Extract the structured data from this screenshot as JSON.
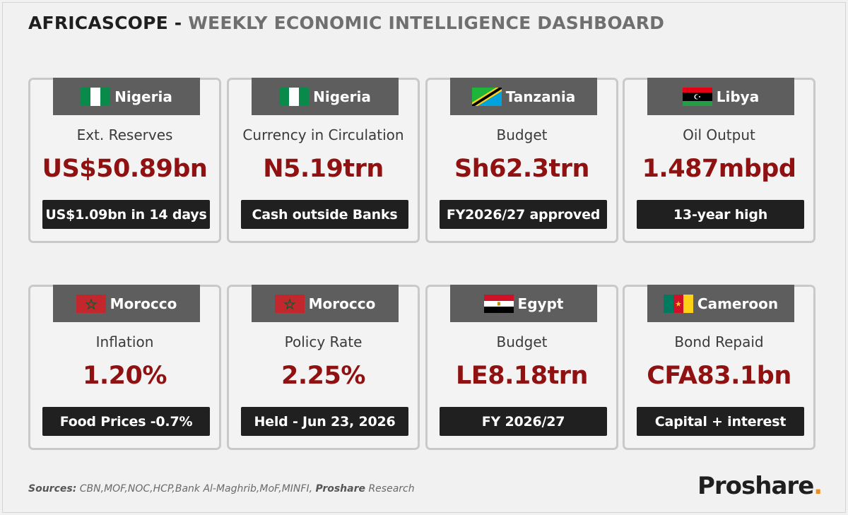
{
  "header": {
    "brand": "AFRICASCOPE",
    "separator": " - ",
    "subtitle": "WEEKLY ECONOMIC INTELLIGENCE DASHBOARD"
  },
  "cards": [
    {
      "country": "Nigeria",
      "flag": "nigeria-flag-icon",
      "metric": "Ext. Reserves",
      "value": "US$50.89bn",
      "note": "US$1.09bn in 14 days"
    },
    {
      "country": "Nigeria",
      "flag": "nigeria-flag-icon",
      "metric": "Currency in Circulation",
      "value": "N5.19trn",
      "note": "Cash outside Banks"
    },
    {
      "country": "Tanzania",
      "flag": "tanzania-flag-icon",
      "metric": "Budget",
      "value": "Sh62.3trn",
      "note": "FY2026/27 approved"
    },
    {
      "country": "Libya",
      "flag": "libya-flag-icon",
      "metric": "Oil Output",
      "value": "1.487mbpd",
      "note": "13-year high"
    },
    {
      "country": "Morocco",
      "flag": "morocco-flag-icon",
      "metric": "Inflation",
      "value": "1.20%",
      "note": "Food Prices -0.7%"
    },
    {
      "country": "Morocco",
      "flag": "morocco-flag-icon",
      "metric": "Policy Rate",
      "value": "2.25%",
      "note": "Held - Jun 23, 2026"
    },
    {
      "country": "Egypt",
      "flag": "egypt-flag-icon",
      "metric": "Budget",
      "value": "LE8.18trn",
      "note": "FY 2026/27"
    },
    {
      "country": "Cameroon",
      "flag": "cameroon-flag-icon",
      "metric": "Bond Repaid",
      "value": "CFA83.1bn",
      "note": "Capital + interest"
    }
  ],
  "footer": {
    "sources_label": "Sources:",
    "sources_text": " CBN,MOF,NOC,HCP,Bank Al-Maghrib,MoF,MINFI, ",
    "proshare": "Proshare",
    "research": " Research"
  },
  "logo": {
    "text": "Proshare",
    "dot": "."
  },
  "colors": {
    "background": "#f1f1f1",
    "value_red": "#8f1111",
    "tab_gray": "#5e5e5e",
    "note_black": "#202020",
    "logo_dot": "#f08c1a"
  }
}
